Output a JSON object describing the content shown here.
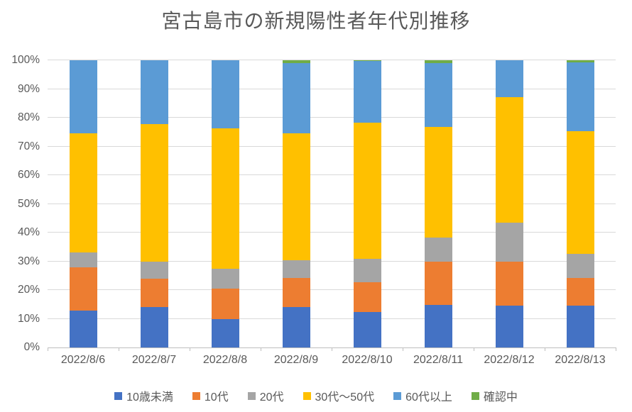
{
  "title": "宮古島市の新規陽性者年代別推移",
  "chart_data": {
    "type": "bar",
    "subtype": "stacked-100-percent-column",
    "title": "宮古島市の新規陽性者年代別推移",
    "xlabel": "",
    "ylabel": "",
    "ylim": [
      0,
      100
    ],
    "ytick_step": 10,
    "yticks": [
      "0%",
      "10%",
      "20%",
      "30%",
      "40%",
      "50%",
      "60%",
      "70%",
      "80%",
      "90%",
      "100%"
    ],
    "grid": true,
    "legend_position": "bottom",
    "categories": [
      "2022/8/6",
      "2022/8/7",
      "2022/8/8",
      "2022/8/9",
      "2022/8/10",
      "2022/8/11",
      "2022/8/12",
      "2022/8/13"
    ],
    "series": [
      {
        "name": "10歳未満",
        "color": "#4472C4",
        "values": [
          12.8,
          14.2,
          10.0,
          14.2,
          12.3,
          14.8,
          14.6,
          14.6
        ]
      },
      {
        "name": "10代",
        "color": "#ED7D31",
        "values": [
          15.2,
          9.7,
          10.6,
          10.1,
          10.5,
          15.2,
          15.2,
          9.7
        ]
      },
      {
        "name": "20代",
        "color": "#A5A5A5",
        "values": [
          5.1,
          6.1,
          6.7,
          6.1,
          8.1,
          8.4,
          13.6,
          8.4
        ]
      },
      {
        "name": "30代〜50代",
        "color": "#FFC000",
        "values": [
          41.4,
          47.8,
          49.0,
          44.1,
          47.5,
          38.5,
          43.8,
          42.6
        ]
      },
      {
        "name": "60代以上",
        "color": "#5B9BD5",
        "values": [
          25.5,
          22.2,
          23.7,
          24.5,
          21.3,
          22.1,
          12.8,
          23.9
        ]
      },
      {
        "name": "確認中",
        "color": "#70AD47",
        "values": [
          0.0,
          0.0,
          0.0,
          1.0,
          0.3,
          1.0,
          0.0,
          0.8
        ]
      }
    ]
  },
  "colors": {
    "title_text": "#595959",
    "axis_text": "#595959",
    "gridline": "#D9D9D9",
    "axis_line": "#BFBFBF",
    "background": "#FFFFFF"
  }
}
